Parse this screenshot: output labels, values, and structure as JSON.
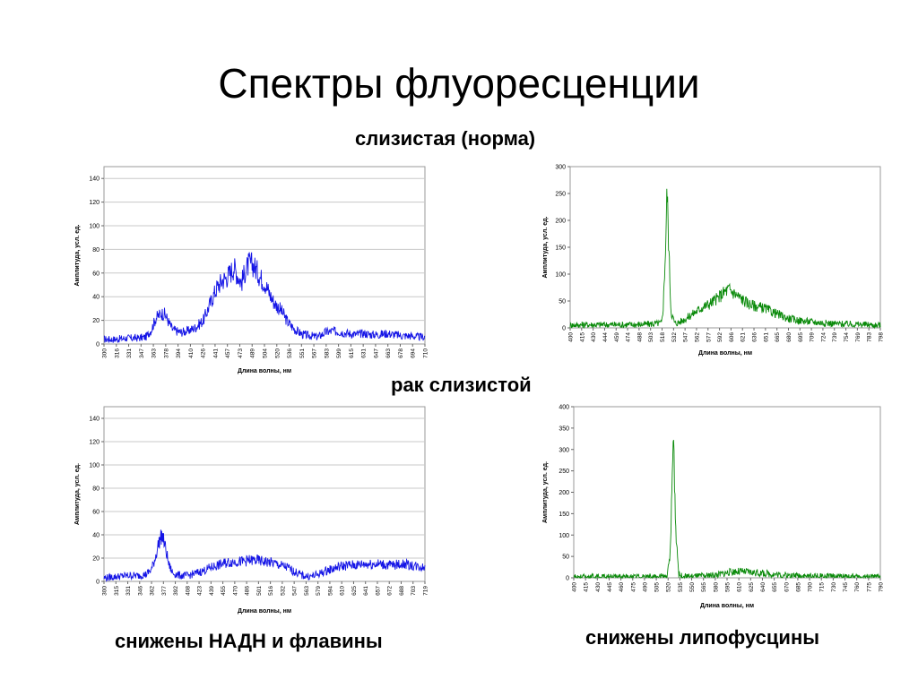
{
  "slide": {
    "title": "Спектры флуоресценции",
    "subtitle_top": "слизистая (норма)",
    "subtitle_mid": "рак слизистой",
    "caption_left": "снижены НАДН и флавины",
    "caption_right": "снижены липофусцины"
  },
  "colors": {
    "blue": "#1414e6",
    "green": "#0a8a0a",
    "grid": "#c8c8c8",
    "axis": "#808080"
  },
  "chart_data": [
    {
      "type": "line",
      "title": "",
      "xlabel": "Длина волны, нм",
      "ylabel": "Амплитуда, усл. ед.",
      "ylim": [
        0,
        150
      ],
      "yticks": [
        0,
        20,
        40,
        60,
        80,
        100,
        120,
        140
      ],
      "xlim": [
        300,
        720
      ],
      "xticks": [
        "300",
        "316",
        "331",
        "347",
        "363",
        "378",
        "394",
        "410",
        "426",
        "441",
        "457",
        "473",
        "489",
        "504",
        "520",
        "536",
        "551",
        "567",
        "583",
        "599",
        "615",
        "631",
        "647",
        "663",
        "678",
        "694",
        "710"
      ],
      "color": "blue",
      "grid": true,
      "series": [
        {
          "x": [
            300,
            315,
            330,
            345,
            355,
            362,
            368,
            375,
            380,
            385,
            390,
            400,
            410,
            420,
            430,
            440,
            448,
            455,
            460,
            465,
            470,
            475,
            480,
            485,
            490,
            495,
            500,
            505,
            510,
            515,
            520,
            525,
            530,
            535,
            540,
            550,
            560,
            570,
            580,
            590,
            600,
            610,
            620,
            630,
            640,
            650,
            660,
            670,
            680,
            690,
            700,
            710,
            720
          ],
          "values": [
            4,
            4,
            5,
            5,
            6,
            12,
            22,
            26,
            25,
            18,
            12,
            10,
            11,
            14,
            20,
            36,
            48,
            54,
            56,
            60,
            65,
            58,
            52,
            62,
            68,
            67,
            62,
            56,
            52,
            45,
            38,
            33,
            30,
            25,
            19,
            12,
            8,
            7,
            6,
            10,
            11,
            10,
            9,
            8,
            9,
            8,
            8,
            9,
            8,
            7,
            7,
            6,
            6
          ]
        }
      ]
    },
    {
      "type": "line",
      "title": "",
      "xlabel": "Длина волны, нм",
      "ylabel": "Амплитуда, усл. ед.",
      "ylim": [
        0,
        300
      ],
      "yticks": [
        0,
        50,
        100,
        150,
        200,
        250,
        300
      ],
      "xlim": [
        400,
        800
      ],
      "xticks": [
        "400",
        "415",
        "430",
        "444",
        "459",
        "474",
        "488",
        "503",
        "518",
        "532",
        "547",
        "562",
        "577",
        "592",
        "606",
        "621",
        "636",
        "651",
        "665",
        "680",
        "695",
        "709",
        "724",
        "739",
        "754",
        "769",
        "783",
        "798"
      ],
      "color": "green",
      "grid": false,
      "series": [
        {
          "x": [
            400,
            420,
            440,
            460,
            480,
            500,
            510,
            518,
            520,
            523,
            525,
            527,
            530,
            535,
            540,
            550,
            560,
            570,
            580,
            590,
            600,
            605,
            610,
            620,
            630,
            640,
            650,
            660,
            670,
            680,
            690,
            700,
            720,
            740,
            760,
            780,
            800
          ],
          "values": [
            5,
            6,
            6,
            6,
            6,
            7,
            8,
            9,
            40,
            150,
            260,
            160,
            30,
            8,
            10,
            18,
            28,
            38,
            45,
            55,
            68,
            72,
            66,
            55,
            45,
            40,
            37,
            30,
            24,
            18,
            15,
            13,
            10,
            8,
            7,
            6,
            5
          ]
        }
      ]
    },
    {
      "type": "line",
      "title": "",
      "xlabel": "Длина волны, нм",
      "ylabel": "Амплитуда, усл. ед.",
      "ylim": [
        0,
        150
      ],
      "yticks": [
        0,
        20,
        40,
        60,
        80,
        100,
        120,
        140
      ],
      "xlim": [
        300,
        720
      ],
      "xticks": [
        "300",
        "315",
        "331",
        "346",
        "362",
        "377",
        "392",
        "408",
        "423",
        "439",
        "455",
        "470",
        "486",
        "501",
        "516",
        "532",
        "547",
        "563",
        "579",
        "594",
        "610",
        "625",
        "641",
        "657",
        "672",
        "688",
        "703",
        "719"
      ],
      "color": "blue",
      "grid": true,
      "series": [
        {
          "x": [
            300,
            315,
            330,
            345,
            355,
            362,
            367,
            372,
            376,
            380,
            385,
            390,
            400,
            410,
            420,
            430,
            440,
            450,
            460,
            470,
            480,
            490,
            500,
            510,
            520,
            530,
            540,
            550,
            560,
            570,
            580,
            590,
            600,
            610,
            620,
            630,
            640,
            650,
            660,
            670,
            680,
            690,
            700,
            710,
            720
          ],
          "values": [
            3,
            4,
            5,
            5,
            6,
            10,
            20,
            34,
            40,
            30,
            14,
            7,
            5,
            5,
            7,
            9,
            12,
            14,
            16,
            17,
            17,
            18,
            18,
            17,
            16,
            14,
            12,
            8,
            5,
            4,
            6,
            9,
            11,
            13,
            14,
            14,
            15,
            15,
            15,
            14,
            14,
            15,
            14,
            13,
            12
          ]
        }
      ]
    },
    {
      "type": "line",
      "title": "",
      "xlabel": "Длина волны, нм",
      "ylabel": "Амплитуда, усл. ед.",
      "ylim": [
        0,
        400
      ],
      "yticks": [
        0,
        50,
        100,
        150,
        200,
        250,
        300,
        350,
        400
      ],
      "xlim": [
        400,
        800
      ],
      "xticks": [
        "400",
        "415",
        "430",
        "445",
        "460",
        "475",
        "490",
        "505",
        "520",
        "535",
        "550",
        "565",
        "580",
        "595",
        "610",
        "625",
        "640",
        "655",
        "670",
        "685",
        "700",
        "715",
        "730",
        "745",
        "760",
        "775",
        "790"
      ],
      "color": "green",
      "grid": false,
      "series": [
        {
          "x": [
            400,
            440,
            480,
            510,
            522,
            526,
            530,
            533,
            537,
            542,
            550,
            570,
            590,
            600,
            610,
            620,
            630,
            650,
            670,
            690,
            710,
            740,
            770,
            800
          ],
          "values": [
            2,
            2,
            2,
            3,
            3,
            60,
            340,
            120,
            8,
            3,
            3,
            4,
            8,
            12,
            15,
            14,
            13,
            10,
            7,
            5,
            4,
            3,
            2,
            2
          ]
        }
      ]
    }
  ]
}
